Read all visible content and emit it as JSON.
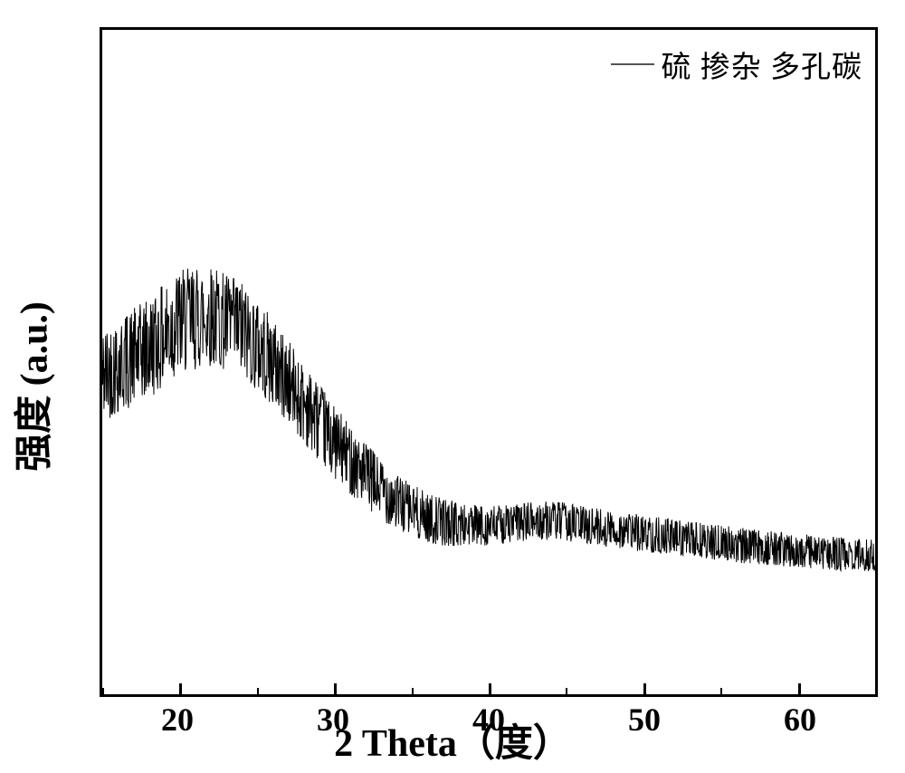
{
  "chart": {
    "type": "line",
    "subtype": "xrd-noisy",
    "legend": {
      "label": "硫 掺杂  多孔碳",
      "line_color": "#555555",
      "line_width": 2
    },
    "ylabel": "强度 (a.u.)",
    "xlabel": "2 Theta（度）",
    "xlim": [
      15,
      65
    ],
    "ylim": [
      0,
      100
    ],
    "xticks_major": [
      20,
      30,
      40,
      50,
      60
    ],
    "xticks_minor": [
      15,
      25,
      35,
      45,
      55,
      65
    ],
    "xtick_labels": [
      "20",
      "30",
      "40",
      "50",
      "60"
    ],
    "plot_bg": "#ffffff",
    "border_color": "#000000",
    "border_width": 3,
    "line_color": "#000000",
    "line_width": 1,
    "label_fontsize": 42,
    "tick_fontsize": 36,
    "legend_fontsize": 33,
    "baseline": {
      "control_x": [
        15,
        18,
        20,
        22,
        24,
        26,
        28,
        30,
        32,
        34,
        36,
        38,
        40,
        42,
        44,
        46,
        48,
        50,
        52,
        54,
        56,
        58,
        60,
        62,
        65
      ],
      "control_y": [
        48,
        52,
        56,
        57,
        55,
        50,
        44,
        38,
        33,
        29,
        26.5,
        25.5,
        25.3,
        25.8,
        26.2,
        25.6,
        24.8,
        24.2,
        23.6,
        23.0,
        22.5,
        22.0,
        21.6,
        21.2,
        20.8
      ]
    },
    "noise": {
      "amplitude_x": [
        15,
        20,
        25,
        30,
        35,
        40,
        65
      ],
      "amplitude_y": [
        7,
        8,
        7,
        5.5,
        4,
        3,
        2.5
      ],
      "samples": 1800,
      "seed": 42
    }
  }
}
